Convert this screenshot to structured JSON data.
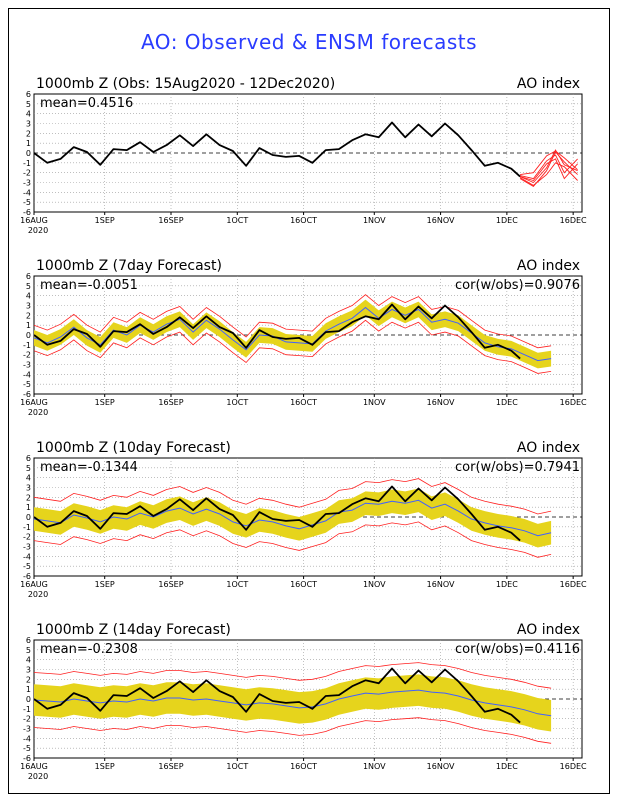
{
  "figure_title": "AO: Observed & ENSM forecasts",
  "colors": {
    "title": "#2a3cff",
    "observed": "#000000",
    "ensemble_member": "#ff2020",
    "ensemble_spread": "#e6d41c",
    "ensemble_mean": "#4060ff"
  },
  "chart_data": [
    {
      "type": "line",
      "title": "1000mb Z (Obs: 15Aug2020 - 12Dec2020)",
      "title_right": "AO index",
      "stat_left": "mean=0.4516",
      "stat_right": "",
      "ylim": [
        -6,
        6
      ],
      "yticks": [
        "6",
        "5",
        "4",
        "3",
        "2",
        "1",
        "0",
        "-1",
        "-2",
        "-3",
        "-4",
        "-5",
        "-6"
      ],
      "xticks": [
        "16AUG",
        "1SEP",
        "16SEP",
        "1OCT",
        "16OCT",
        "1NOV",
        "16NOV",
        "1DEC",
        "16DEC"
      ],
      "x_year_label": "2020",
      "grid": true,
      "observed": [
        [
          0,
          0
        ],
        [
          3,
          -1
        ],
        [
          6,
          -0.6
        ],
        [
          9,
          0.6
        ],
        [
          12,
          0.1
        ],
        [
          15,
          -1.2
        ],
        [
          18,
          0.4
        ],
        [
          21,
          0.3
        ],
        [
          24,
          1.1
        ],
        [
          27,
          0.1
        ],
        [
          30,
          0.8
        ],
        [
          33,
          1.8
        ],
        [
          36,
          0.7
        ],
        [
          39,
          1.9
        ],
        [
          42,
          0.8
        ],
        [
          45,
          0.2
        ],
        [
          48,
          -1.3
        ],
        [
          51,
          0.5
        ],
        [
          54,
          -0.2
        ],
        [
          57,
          -0.4
        ],
        [
          60,
          -0.3
        ],
        [
          63,
          -1.0
        ],
        [
          66,
          0.3
        ],
        [
          69,
          0.4
        ],
        [
          72,
          1.3
        ],
        [
          75,
          1.9
        ],
        [
          78,
          1.6
        ],
        [
          81,
          3.1
        ],
        [
          84,
          1.6
        ],
        [
          87,
          2.9
        ],
        [
          90,
          1.7
        ],
        [
          93,
          3.0
        ],
        [
          96,
          1.8
        ],
        [
          99,
          0.3
        ],
        [
          102,
          -1.3
        ],
        [
          105,
          -1.0
        ],
        [
          108,
          -1.6
        ],
        [
          110,
          -2.4
        ]
      ],
      "members": [
        [
          [
            110,
            -2.4
          ],
          [
            113,
            -3.0
          ],
          [
            116,
            -1.5
          ],
          [
            118,
            0.3
          ],
          [
            120,
            -1.2
          ],
          [
            123,
            -1.8
          ]
        ],
        [
          [
            110,
            -2.3
          ],
          [
            113,
            -2.6
          ],
          [
            116,
            -0.8
          ],
          [
            118,
            -0.2
          ],
          [
            120,
            -2.0
          ],
          [
            123,
            -0.6
          ]
        ],
        [
          [
            110,
            -2.5
          ],
          [
            113,
            -3.3
          ],
          [
            116,
            -2.2
          ],
          [
            118,
            -1.0
          ],
          [
            120,
            -1.4
          ],
          [
            123,
            -2.8
          ]
        ],
        [
          [
            110,
            -2.2
          ],
          [
            113,
            -2.0
          ],
          [
            116,
            -0.3
          ],
          [
            118,
            0.2
          ],
          [
            120,
            -0.5
          ],
          [
            123,
            -1.7
          ]
        ],
        [
          [
            110,
            -2.4
          ],
          [
            113,
            -2.8
          ],
          [
            116,
            -1.1
          ],
          [
            118,
            -0.6
          ],
          [
            120,
            -2.6
          ],
          [
            123,
            -1.1
          ]
        ],
        [
          [
            110,
            -2.6
          ],
          [
            113,
            -3.4
          ],
          [
            116,
            -1.8
          ],
          [
            118,
            0.1
          ],
          [
            120,
            -0.9
          ],
          [
            123,
            -2.2
          ]
        ]
      ]
    },
    {
      "type": "line",
      "title": "1000mb Z (7day Forecast)",
      "title_right": "AO index",
      "stat_left": "mean=-0.0051",
      "stat_right": "cor(w/obs)=0.9076",
      "ylim": [
        -6,
        6
      ],
      "yticks": [
        "6",
        "5",
        "4",
        "3",
        "2",
        "1",
        "0",
        "-1",
        "-2",
        "-3",
        "-4",
        "-5",
        "-6"
      ],
      "xticks": [
        "16AUG",
        "1SEP",
        "16SEP",
        "1OCT",
        "16OCT",
        "1NOV",
        "16NOV",
        "1DEC",
        "16DEC"
      ],
      "x_year_label": "2020",
      "grid": true,
      "observed": [
        [
          0,
          0
        ],
        [
          3,
          -1
        ],
        [
          6,
          -0.6
        ],
        [
          9,
          0.6
        ],
        [
          12,
          0.1
        ],
        [
          15,
          -1.2
        ],
        [
          18,
          0.4
        ],
        [
          21,
          0.3
        ],
        [
          24,
          1.1
        ],
        [
          27,
          0.1
        ],
        [
          30,
          0.8
        ],
        [
          33,
          1.8
        ],
        [
          36,
          0.7
        ],
        [
          39,
          1.9
        ],
        [
          42,
          0.8
        ],
        [
          45,
          0.2
        ],
        [
          48,
          -1.3
        ],
        [
          51,
          0.5
        ],
        [
          54,
          -0.2
        ],
        [
          57,
          -0.4
        ],
        [
          60,
          -0.3
        ],
        [
          63,
          -1.0
        ],
        [
          66,
          0.3
        ],
        [
          69,
          0.4
        ],
        [
          72,
          1.3
        ],
        [
          75,
          1.9
        ],
        [
          78,
          1.6
        ],
        [
          81,
          3.1
        ],
        [
          84,
          1.6
        ],
        [
          87,
          2.9
        ],
        [
          90,
          1.7
        ],
        [
          93,
          3.0
        ],
        [
          96,
          1.8
        ],
        [
          99,
          0.3
        ],
        [
          102,
          -1.3
        ],
        [
          105,
          -1.0
        ],
        [
          108,
          -1.6
        ],
        [
          110,
          -2.4
        ]
      ],
      "ens_mean": [
        [
          0,
          -0.3
        ],
        [
          3,
          -0.8
        ],
        [
          6,
          -0.2
        ],
        [
          9,
          0.8
        ],
        [
          12,
          -0.3
        ],
        [
          15,
          -1.0
        ],
        [
          18,
          0.5
        ],
        [
          21,
          0.0
        ],
        [
          24,
          1.0
        ],
        [
          27,
          0.3
        ],
        [
          30,
          1.1
        ],
        [
          33,
          1.6
        ],
        [
          36,
          0.3
        ],
        [
          39,
          1.5
        ],
        [
          42,
          0.6
        ],
        [
          45,
          -0.5
        ],
        [
          48,
          -1.5
        ],
        [
          51,
          0.0
        ],
        [
          54,
          -0.1
        ],
        [
          57,
          -0.7
        ],
        [
          60,
          -0.8
        ],
        [
          63,
          -0.9
        ],
        [
          66,
          0.4
        ],
        [
          69,
          1.1
        ],
        [
          72,
          1.7
        ],
        [
          75,
          2.8
        ],
        [
          78,
          1.7
        ],
        [
          81,
          2.6
        ],
        [
          84,
          2.0
        ],
        [
          87,
          2.6
        ],
        [
          90,
          1.3
        ],
        [
          93,
          1.6
        ],
        [
          96,
          1.2
        ],
        [
          99,
          0.2
        ],
        [
          102,
          -0.8
        ],
        [
          105,
          -1.2
        ],
        [
          108,
          -1.4
        ],
        [
          111,
          -2.0
        ],
        [
          114,
          -2.6
        ],
        [
          117,
          -2.4
        ]
      ],
      "spread": 0.8,
      "outer": 1.3
    },
    {
      "type": "line",
      "title": "1000mb Z (10day Forecast)",
      "title_right": "AO index",
      "stat_left": "mean=-0.1344",
      "stat_right": "cor(w/obs)=0.7941",
      "ylim": [
        -6,
        6
      ],
      "yticks": [
        "6",
        "5",
        "4",
        "3",
        "2",
        "1",
        "0",
        "-1",
        "-2",
        "-3",
        "-4",
        "-5",
        "-6"
      ],
      "xticks": [
        "16AUG",
        "1SEP",
        "16SEP",
        "1OCT",
        "16OCT",
        "1NOV",
        "16NOV",
        "1DEC",
        "16DEC"
      ],
      "x_year_label": "2020",
      "grid": true,
      "observed": [
        [
          0,
          0
        ],
        [
          3,
          -1
        ],
        [
          6,
          -0.6
        ],
        [
          9,
          0.6
        ],
        [
          12,
          0.1
        ],
        [
          15,
          -1.2
        ],
        [
          18,
          0.4
        ],
        [
          21,
          0.3
        ],
        [
          24,
          1.1
        ],
        [
          27,
          0.1
        ],
        [
          30,
          0.8
        ],
        [
          33,
          1.8
        ],
        [
          36,
          0.7
        ],
        [
          39,
          1.9
        ],
        [
          42,
          0.8
        ],
        [
          45,
          0.2
        ],
        [
          48,
          -1.3
        ],
        [
          51,
          0.5
        ],
        [
          54,
          -0.2
        ],
        [
          57,
          -0.4
        ],
        [
          60,
          -0.3
        ],
        [
          63,
          -1.0
        ],
        [
          66,
          0.3
        ],
        [
          69,
          0.4
        ],
        [
          72,
          1.3
        ],
        [
          75,
          1.9
        ],
        [
          78,
          1.6
        ],
        [
          81,
          3.1
        ],
        [
          84,
          1.6
        ],
        [
          87,
          2.9
        ],
        [
          90,
          1.7
        ],
        [
          93,
          3.0
        ],
        [
          96,
          1.8
        ],
        [
          99,
          0.3
        ],
        [
          102,
          -1.3
        ],
        [
          105,
          -1.0
        ],
        [
          108,
          -1.6
        ],
        [
          110,
          -2.4
        ]
      ],
      "ens_mean": [
        [
          0,
          -0.2
        ],
        [
          3,
          -0.4
        ],
        [
          6,
          -0.6
        ],
        [
          9,
          0.2
        ],
        [
          12,
          -0.1
        ],
        [
          15,
          -0.5
        ],
        [
          18,
          0.0
        ],
        [
          21,
          -0.2
        ],
        [
          24,
          0.4
        ],
        [
          27,
          0.0
        ],
        [
          30,
          0.6
        ],
        [
          33,
          0.9
        ],
        [
          36,
          0.3
        ],
        [
          39,
          0.8
        ],
        [
          42,
          0.3
        ],
        [
          45,
          -0.5
        ],
        [
          48,
          -0.9
        ],
        [
          51,
          -0.3
        ],
        [
          54,
          -0.5
        ],
        [
          57,
          -0.9
        ],
        [
          60,
          -1.2
        ],
        [
          63,
          -0.8
        ],
        [
          66,
          -0.4
        ],
        [
          69,
          0.5
        ],
        [
          72,
          0.7
        ],
        [
          75,
          1.4
        ],
        [
          78,
          1.3
        ],
        [
          81,
          1.6
        ],
        [
          84,
          1.4
        ],
        [
          87,
          1.7
        ],
        [
          90,
          0.9
        ],
        [
          93,
          1.3
        ],
        [
          96,
          0.6
        ],
        [
          99,
          -0.2
        ],
        [
          102,
          -0.6
        ],
        [
          105,
          -0.9
        ],
        [
          108,
          -1.1
        ],
        [
          111,
          -1.4
        ],
        [
          114,
          -1.9
        ],
        [
          117,
          -1.6
        ]
      ],
      "spread": 1.2,
      "outer": 2.2
    },
    {
      "type": "line",
      "title": "1000mb Z (14day Forecast)",
      "title_right": "AO index",
      "stat_left": "mean=-0.2308",
      "stat_right": "cor(w/obs)=0.4116",
      "ylim": [
        -6,
        6
      ],
      "yticks": [
        "6",
        "5",
        "4",
        "3",
        "2",
        "1",
        "0",
        "-1",
        "-2",
        "-3",
        "-4",
        "-5",
        "-6"
      ],
      "xticks": [
        "16AUG",
        "1SEP",
        "16SEP",
        "1OCT",
        "16OCT",
        "1NOV",
        "16NOV",
        "1DEC",
        "16DEC"
      ],
      "x_year_label": "2020",
      "grid": true,
      "observed": [
        [
          0,
          0
        ],
        [
          3,
          -1
        ],
        [
          6,
          -0.6
        ],
        [
          9,
          0.6
        ],
        [
          12,
          0.1
        ],
        [
          15,
          -1.2
        ],
        [
          18,
          0.4
        ],
        [
          21,
          0.3
        ],
        [
          24,
          1.1
        ],
        [
          27,
          0.1
        ],
        [
          30,
          0.8
        ],
        [
          33,
          1.8
        ],
        [
          36,
          0.7
        ],
        [
          39,
          1.9
        ],
        [
          42,
          0.8
        ],
        [
          45,
          0.2
        ],
        [
          48,
          -1.3
        ],
        [
          51,
          0.5
        ],
        [
          54,
          -0.2
        ],
        [
          57,
          -0.4
        ],
        [
          60,
          -0.3
        ],
        [
          63,
          -1.0
        ],
        [
          66,
          0.3
        ],
        [
          69,
          0.4
        ],
        [
          72,
          1.3
        ],
        [
          75,
          1.9
        ],
        [
          78,
          1.6
        ],
        [
          81,
          3.1
        ],
        [
          84,
          1.6
        ],
        [
          87,
          2.9
        ],
        [
          90,
          1.7
        ],
        [
          93,
          3.0
        ],
        [
          96,
          1.8
        ],
        [
          99,
          0.3
        ],
        [
          102,
          -1.3
        ],
        [
          105,
          -1.0
        ],
        [
          108,
          -1.6
        ],
        [
          110,
          -2.4
        ]
      ],
      "ens_mean": [
        [
          0,
          -0.1
        ],
        [
          3,
          -0.2
        ],
        [
          6,
          -0.3
        ],
        [
          9,
          0.0
        ],
        [
          12,
          -0.2
        ],
        [
          15,
          -0.4
        ],
        [
          18,
          -0.2
        ],
        [
          21,
          -0.3
        ],
        [
          24,
          0.0
        ],
        [
          27,
          -0.2
        ],
        [
          30,
          0.1
        ],
        [
          33,
          0.1
        ],
        [
          36,
          -0.1
        ],
        [
          39,
          0.0
        ],
        [
          42,
          -0.2
        ],
        [
          45,
          -0.4
        ],
        [
          48,
          -0.6
        ],
        [
          51,
          -0.4
        ],
        [
          54,
          -0.5
        ],
        [
          57,
          -0.7
        ],
        [
          60,
          -0.9
        ],
        [
          63,
          -0.8
        ],
        [
          66,
          -0.5
        ],
        [
          69,
          0.0
        ],
        [
          72,
          0.3
        ],
        [
          75,
          0.6
        ],
        [
          78,
          0.5
        ],
        [
          81,
          0.7
        ],
        [
          84,
          0.8
        ],
        [
          87,
          0.9
        ],
        [
          90,
          0.7
        ],
        [
          93,
          0.6
        ],
        [
          96,
          0.3
        ],
        [
          99,
          -0.1
        ],
        [
          102,
          -0.4
        ],
        [
          105,
          -0.6
        ],
        [
          108,
          -0.8
        ],
        [
          111,
          -1.1
        ],
        [
          114,
          -1.5
        ],
        [
          117,
          -1.7
        ]
      ],
      "spread": 1.6,
      "outer": 2.8
    }
  ]
}
